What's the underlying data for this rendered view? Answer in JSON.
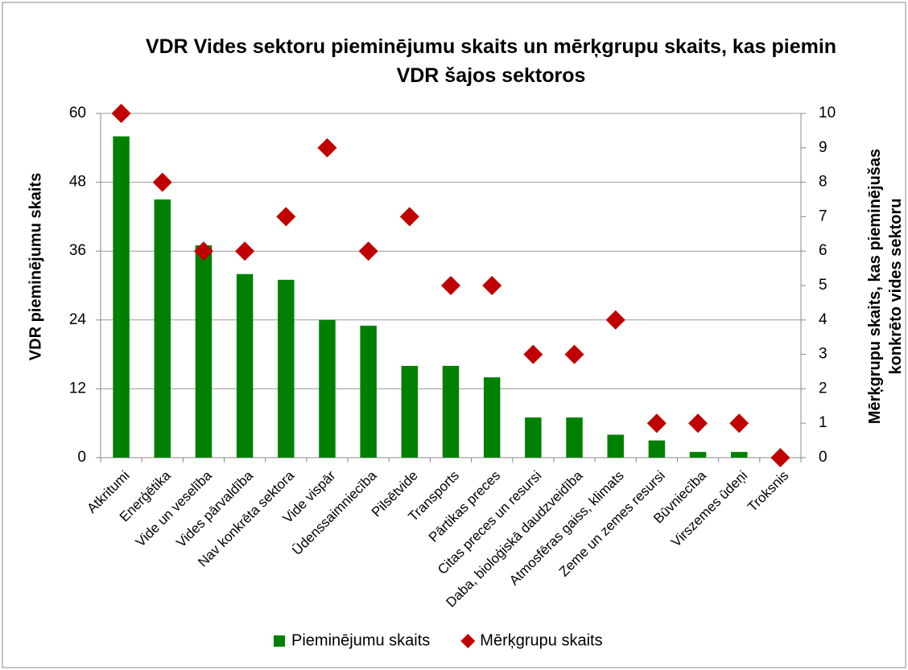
{
  "chart_data": {
    "type": "bar",
    "title": "VDR Vides sektoru pieminējumu skaits un mērķgrupu skaits, kas piemin VDR šajos sektoros",
    "y_label": "VDR pieminējumu skaits",
    "y2_label": "Mērķgrupu skaits, kas pieminējušas konkrēto vides sektoru",
    "categories": [
      "Atkritumi",
      "Enerģētika",
      "Vide un veselība",
      "Vides pārvaldība",
      "Nav konkrēta sektora",
      "Vide vispār",
      "Ūdenssaimniecība",
      "Pilsētvide",
      "Transports",
      "Pārtikas preces",
      "Citas preces un resursi",
      "Daba, bioloģiskā daudzveidība",
      "Atmosfēras gaiss, klimats",
      "Zeme un zemes resursi",
      "Būvniecība",
      "Virszemes ūdeņi",
      "Troksnis"
    ],
    "series": [
      {
        "name": "Pieminējumu skaits",
        "type": "bar",
        "color": "#008000",
        "values": [
          56,
          45,
          37,
          32,
          31,
          24,
          23,
          16,
          16,
          14,
          7,
          7,
          4,
          3,
          1,
          1,
          0
        ]
      },
      {
        "name": "Mērķgrupu skaits",
        "type": "scatter",
        "axis": "y2",
        "color": "#c00000",
        "values": [
          10,
          8,
          6,
          6,
          7,
          9,
          6,
          7,
          5,
          5,
          3,
          3,
          4,
          1,
          1,
          1,
          0
        ]
      }
    ],
    "ylim": [
      0,
      60
    ],
    "yticks": [
      0,
      12,
      24,
      36,
      48,
      60
    ],
    "y2lim": [
      0,
      10
    ],
    "y2ticks": [
      0,
      1,
      2,
      3,
      4,
      5,
      6,
      7,
      8,
      9,
      10
    ],
    "grid": true,
    "legend": "bottom"
  }
}
